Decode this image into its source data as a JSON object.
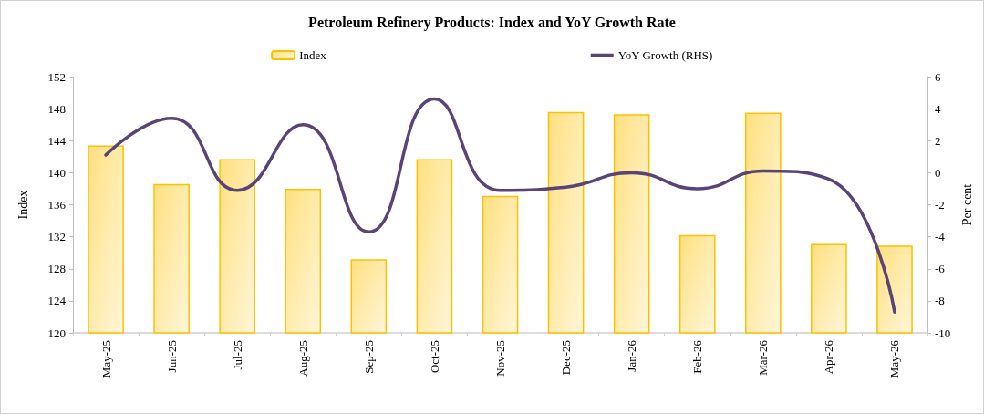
{
  "chart_data": {
    "type": "bar",
    "title": "Petroleum Refinery Products: Index and YoY Growth Rate",
    "categories": [
      "May-25",
      "Jun-25",
      "Jul-25",
      "Aug-25",
      "Sep-25",
      "Oct-25",
      "Nov-25",
      "Dec-25",
      "Jan-26",
      "Feb-26",
      "Mar-26",
      "Apr-26",
      "May-26"
    ],
    "series": [
      {
        "name": "Index",
        "color": "#ffc000",
        "values": [
          143.4,
          138.6,
          141.7,
          138.0,
          129.2,
          141.7,
          137.1,
          147.6,
          147.3,
          132.2,
          147.5,
          131.1,
          130.9
        ]
      },
      {
        "name": "YoY Growth (RHS)",
        "type": "line",
        "axis": "y2",
        "color": "#584477",
        "values": [
          1.1,
          3.4,
          -1.1,
          3.0,
          -3.7,
          4.6,
          -1.1,
          -0.9,
          0.0,
          -1.0,
          0.1,
          -0.4,
          -8.7
        ]
      }
    ],
    "ylabel": "Index",
    "y2label": "Per cent",
    "ylim": [
      120,
      152
    ],
    "yticks": [
      120,
      124,
      128,
      132,
      136,
      140,
      144,
      148,
      152
    ],
    "y2lim": [
      -10,
      6
    ],
    "y2ticks": [
      -10,
      -8,
      -6,
      -4,
      -2,
      0,
      2,
      4,
      6
    ],
    "grid": false,
    "legend": "top",
    "marker": "none",
    "line_style": "solid"
  }
}
